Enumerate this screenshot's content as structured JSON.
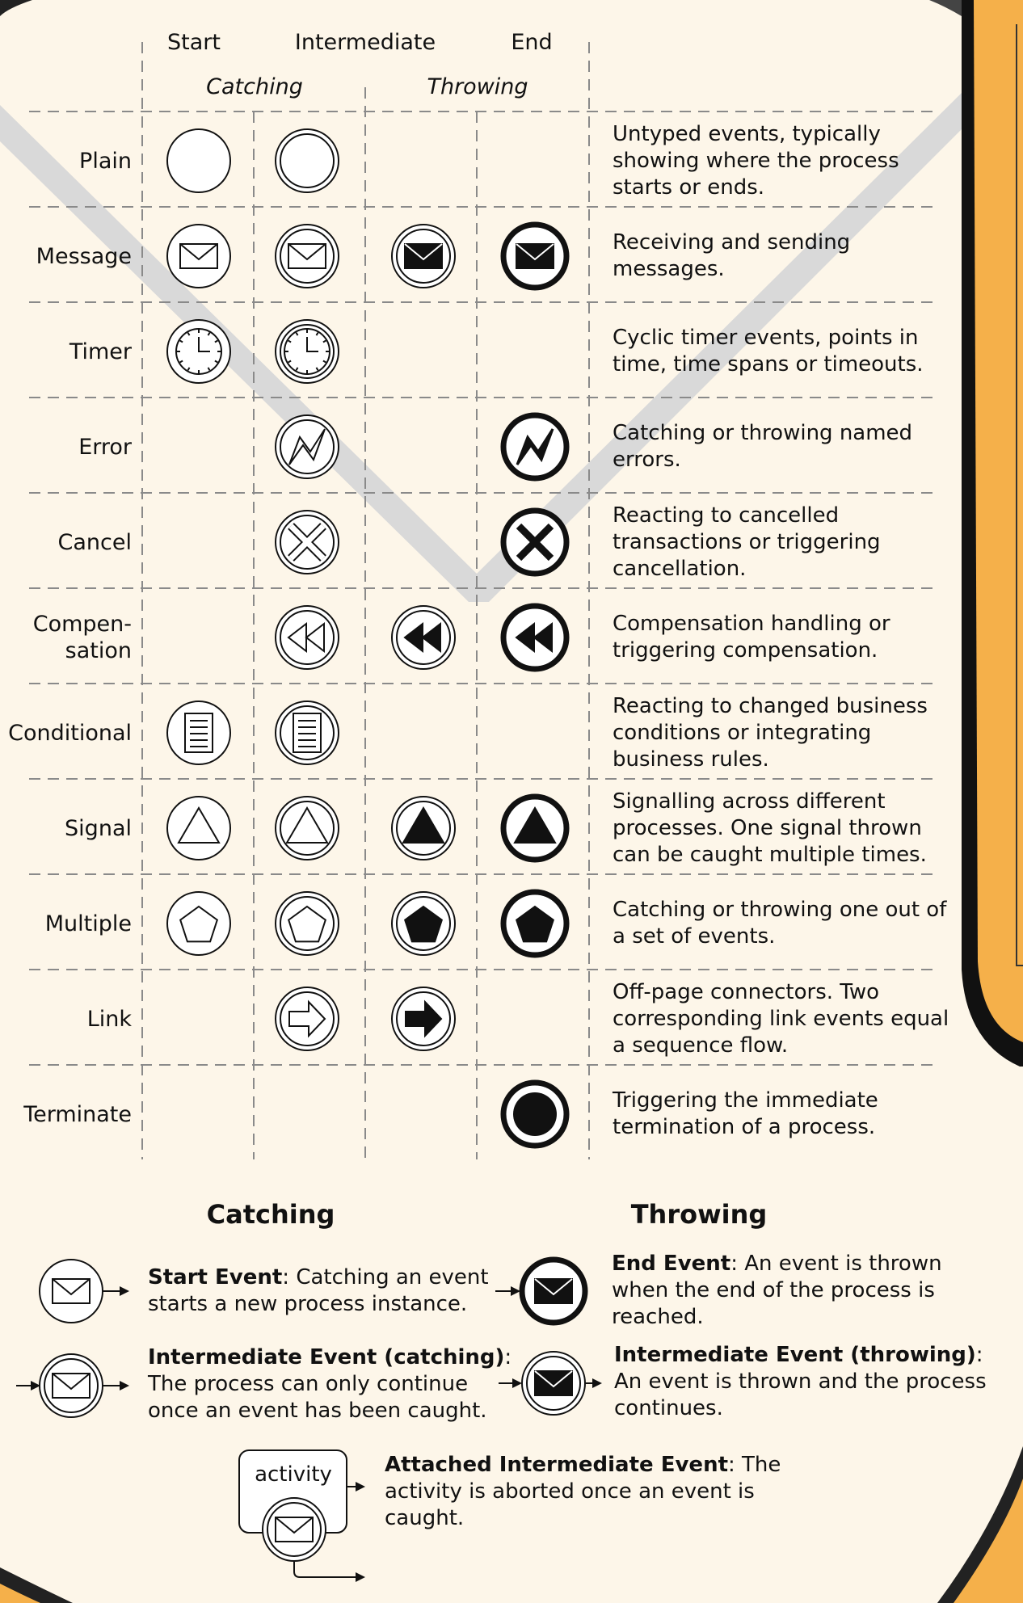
{
  "columns": {
    "start": "Start",
    "intermediate": "Intermediate",
    "end": "End",
    "catching": "Catching",
    "throwing": "Throwing"
  },
  "rows": [
    {
      "label": [
        "Plain"
      ],
      "icons": [
        "plain",
        "plain",
        "",
        ""
      ],
      "desc": [
        "Untyped events, typically",
        "showing where the process",
        "starts or ends."
      ]
    },
    {
      "label": [
        "Message"
      ],
      "icons": [
        "envelope",
        "envelope",
        "envelope",
        "envelope"
      ],
      "desc": [
        "Receiving and sending",
        "messages."
      ]
    },
    {
      "label": [
        "Timer"
      ],
      "icons": [
        "clock",
        "clock",
        "",
        ""
      ],
      "desc": [
        "Cyclic timer events, points in",
        "time, time spans or timeouts."
      ]
    },
    {
      "label": [
        "Error"
      ],
      "icons": [
        "",
        "bolt",
        "",
        "bolt"
      ],
      "desc": [
        "Catching or throwing named",
        "errors."
      ]
    },
    {
      "label": [
        "Cancel"
      ],
      "icons": [
        "",
        "cross",
        "",
        "cross"
      ],
      "desc": [
        "Reacting to cancelled",
        "transactions or triggering",
        "cancellation."
      ]
    },
    {
      "label": [
        "Compen-",
        "sation"
      ],
      "icons": [
        "",
        "rewind",
        "rewind",
        "rewind"
      ],
      "desc": [
        "Compensation handling or",
        "triggering compensation."
      ]
    },
    {
      "label": [
        "Conditional"
      ],
      "icons": [
        "document",
        "document",
        "",
        ""
      ],
      "desc": [
        "Reacting to changed business",
        "conditions or integrating",
        "business rules."
      ]
    },
    {
      "label": [
        "Signal"
      ],
      "icons": [
        "triangle",
        "triangle",
        "triangle",
        "triangle"
      ],
      "desc": [
        "Signalling across different",
        "processes. One signal thrown",
        "can be caught multiple times."
      ]
    },
    {
      "label": [
        "Multiple"
      ],
      "icons": [
        "pentagon",
        "pentagon",
        "pentagon",
        "pentagon"
      ],
      "desc": [
        "Catching or throwing one out of",
        "a set of events."
      ]
    },
    {
      "label": [
        "Link"
      ],
      "icons": [
        "",
        "arrow",
        "arrow",
        ""
      ],
      "desc": [
        "Off-page connectors. Two",
        "corresponding link events equal",
        "a sequence flow."
      ]
    },
    {
      "label": [
        "Terminate"
      ],
      "icons": [
        "",
        "",
        "",
        "terminate"
      ],
      "desc": [
        "Triggering the immediate",
        "termination of a process."
      ]
    }
  ],
  "legend": {
    "catching_title": "Catching",
    "throwing_title": "Throwing",
    "start_event": {
      "term": "Start Event",
      "rest": ": Catching an event",
      "lines": [
        "starts a new process instance."
      ]
    },
    "intermediate_catching": {
      "term": "Intermediate Event (catching)",
      "rest": ":",
      "lines": [
        "The process can only continue",
        "once an event has been caught."
      ]
    },
    "end_event": {
      "term": "End Event",
      "rest": ": An event is thrown",
      "lines": [
        "when the end of the process is",
        "reached."
      ]
    },
    "intermediate_throwing": {
      "term": "Intermediate Event (throwing)",
      "rest": ":",
      "lines": [
        "An event is thrown and the process",
        "continues."
      ]
    },
    "attached": {
      "term": "Attached Intermediate Event",
      "rest": ": The",
      "lines": [
        "activity is aborted once an event is",
        "caught."
      ]
    },
    "activity_label": "activity"
  },
  "colors": {
    "background": "#fdf6e9",
    "panel_orange": "#f5b04a",
    "stroke": "#111111",
    "chevron": "#d9d9d9",
    "grid": "#8a8a8a"
  }
}
